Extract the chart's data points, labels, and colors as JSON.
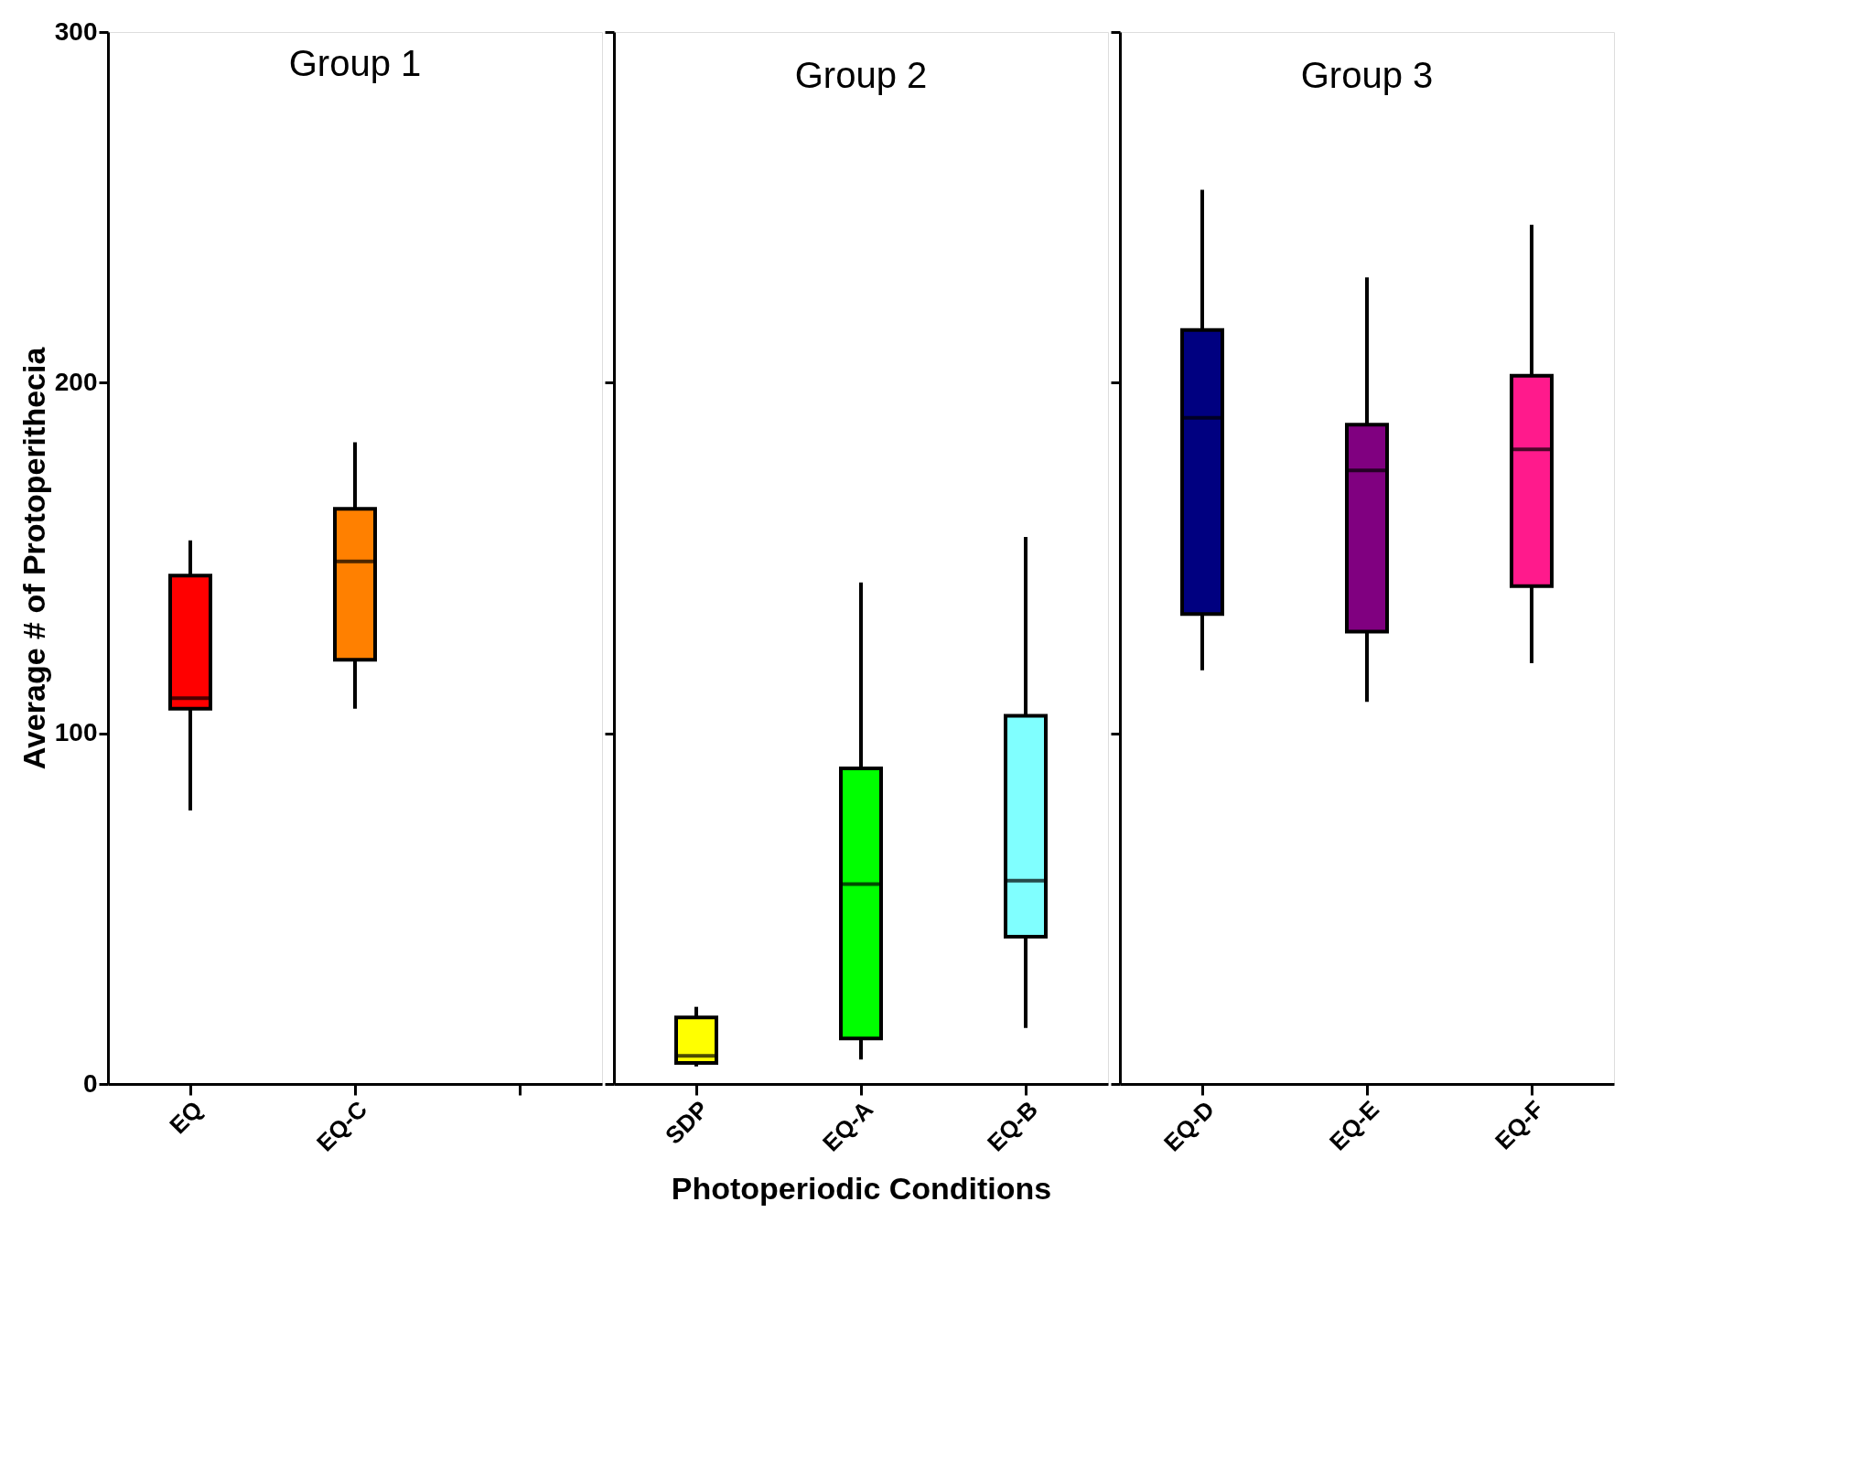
{
  "chart_data": [
    {
      "type": "box",
      "title": "Group 1",
      "ylabel": "Average # of Protoperithecia",
      "categories": [
        "EQ",
        "EQ-C",
        null
      ],
      "ylim": [
        0,
        300
      ],
      "yticks": [
        0,
        100,
        200,
        300
      ],
      "colors": [
        "#ff0000",
        "#ff8000",
        null
      ],
      "boxes": [
        {
          "low": 78,
          "q1": 107,
          "median": 110,
          "q3": 145,
          "high": 155
        },
        {
          "low": 107,
          "q1": 121,
          "median": 149,
          "q3": 164,
          "high": 183
        },
        null
      ]
    },
    {
      "type": "box",
      "title": "Group 2",
      "xlabel": "Photoperiodic Conditions",
      "categories": [
        "SDP",
        "EQ-A",
        "EQ-B"
      ],
      "ylim": [
        0,
        300
      ],
      "yticks": [
        0,
        100,
        200,
        300
      ],
      "tick_labels": "x",
      "colors": [
        "#ffff00",
        "#00ff00",
        "#80ffff"
      ],
      "boxes": [
        {
          "low": 5,
          "q1": 6,
          "median": 8,
          "q3": 19,
          "high": 22
        },
        {
          "low": 7,
          "q1": 13,
          "median": 57,
          "q3": 90,
          "high": 143
        },
        {
          "low": 16,
          "q1": 42,
          "median": 58,
          "q3": 105,
          "high": 156
        }
      ]
    },
    {
      "type": "box",
      "title": "Group 3",
      "categories": [
        "EQ-D",
        "EQ-E",
        "EQ-F"
      ],
      "ylim": [
        0,
        300
      ],
      "yticks": [
        0,
        100,
        200,
        300
      ],
      "tick_labels": "x",
      "colors": [
        "#000080",
        "#800080",
        "#ff1a8c"
      ],
      "boxes": [
        {
          "low": 118,
          "q1": 134,
          "median": 190,
          "q3": 215,
          "high": 255
        },
        {
          "low": 109,
          "q1": 129,
          "median": 175,
          "q3": 188,
          "high": 230
        },
        {
          "low": 120,
          "q1": 142,
          "median": 181,
          "q3": 202,
          "high": 245
        }
      ]
    }
  ]
}
